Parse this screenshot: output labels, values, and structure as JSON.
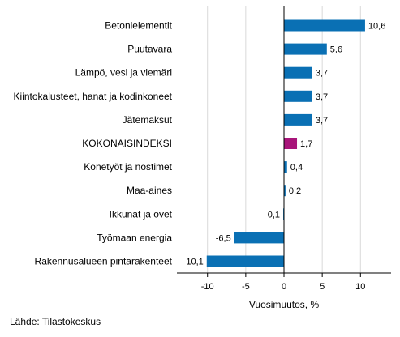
{
  "chart_data": {
    "type": "bar",
    "orientation": "horizontal",
    "categories": [
      "Betonielementit",
      "Puutavara",
      "Lämpö, vesi ja viemäri",
      "Kiintokalusteet, hanat ja kodinkoneet",
      "Jätemaksut",
      "KOKONAISINDEKSI",
      "Konetyöt ja nostimet",
      "Maa-aines",
      "Ikkunat ja ovet",
      "Työmaan energia",
      "Rakennusalueen pintarakenteet"
    ],
    "values": [
      10.6,
      5.6,
      3.7,
      3.7,
      3.7,
      1.7,
      0.4,
      0.2,
      -0.1,
      -6.5,
      -10.1
    ],
    "value_labels": [
      "10,6",
      "5,6",
      "3,7",
      "3,7",
      "3,7",
      "1,7",
      "0,4",
      "0,2",
      "-0,1",
      "-6,5",
      "-10,1"
    ],
    "highlight_category": "KOKONAISINDEKSI",
    "colors": {
      "default": "#0a70b4",
      "highlight": "#a8157a",
      "grid": "#d9d9d9",
      "zero_line": "#000000"
    },
    "xlabel": "Vuosimuutos, %",
    "xlim": [
      -14,
      14
    ],
    "xticks": [
      -10,
      -5,
      0,
      5,
      10
    ],
    "xtick_labels": [
      "-10",
      "-5",
      "0",
      "5",
      "10"
    ],
    "grid": true
  },
  "source": "Lähde: Tilastokeskus"
}
